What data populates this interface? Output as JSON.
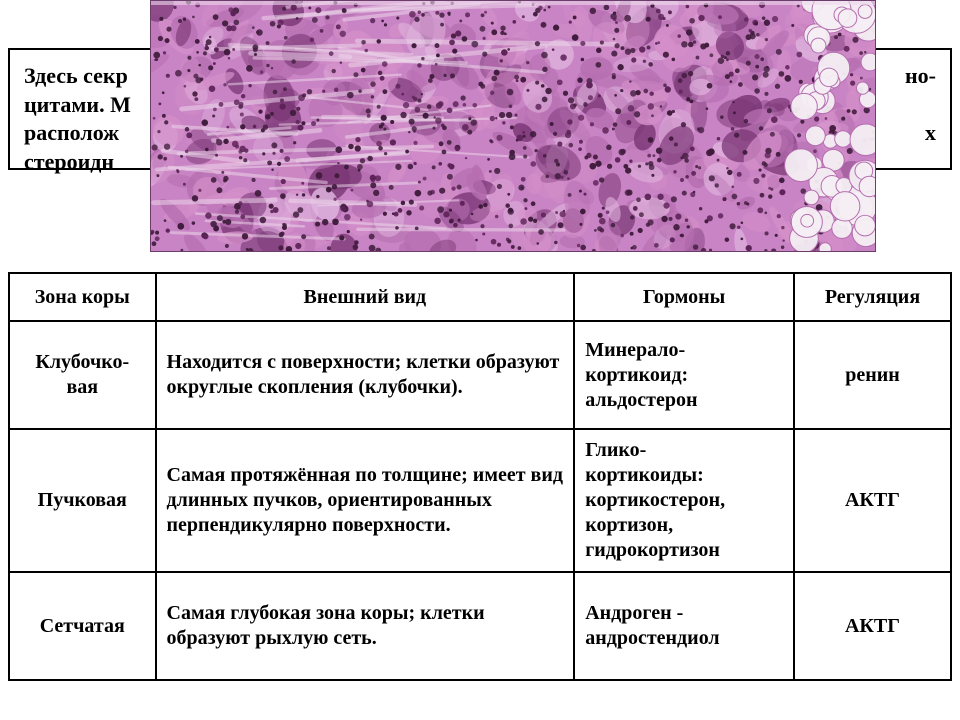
{
  "top_box": {
    "line1": "Здесь секр",
    "line2_a": "цитами. М",
    "line2_b": "но-",
    "line3_a": "располож",
    "line3_b": "х",
    "line4": "стероидн"
  },
  "histology": {
    "bg": "#c884c4",
    "dark": "#7a3675",
    "deep": "#5d2358",
    "mid": "#b56eb0",
    "light": "#e0b5de",
    "pale": "#eed9ec",
    "pink": "#d48fc9",
    "white_fat": "#f4eef3",
    "nucleus": "#3f1b3c"
  },
  "table": {
    "headers": {
      "zone": "Зона коры",
      "appearance": "Внешний вид",
      "hormones": "Гормоны",
      "regulation": "Регуляция"
    },
    "rows": [
      {
        "zone": "Клубочко-\nвая",
        "appearance": "Находится с поверхности; клетки образуют округлые скопления (клубочки).",
        "hormones": "Минерало-\nкортикоид:\nальдостерон",
        "regulation": "ренин"
      },
      {
        "zone": "Пучковая",
        "appearance": "Самая протяжённая по толщине; имеет вид длинных пучков, ориентированных перпендикулярно поверхности.",
        "hormones": "Глико-\nкортикоиды:\nкортикостерон,\nкортизон,\nгидрокортизон",
        "regulation": "АКТГ"
      },
      {
        "zone": "Сетчатая",
        "appearance": "Самая глубокая зона коры; клетки образуют рыхлую сеть.",
        "hormones": "Андроген -\nандростендиол",
        "regulation": "АКТГ"
      }
    ]
  }
}
